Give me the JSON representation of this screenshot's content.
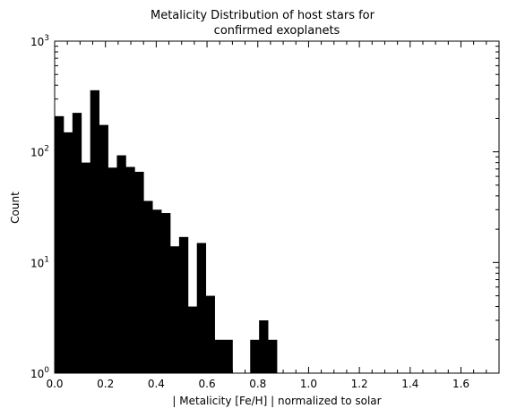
{
  "chart_data": {
    "type": "bar",
    "title_lines": [
      "Metalicity Distribution of host stars for",
      "confirmed exoplanets"
    ],
    "xlabel": "| Metalicity [Fe/H] | normalized to solar",
    "ylabel": "Count",
    "xlim": [
      0.0,
      1.75
    ],
    "ylim": [
      1,
      1000
    ],
    "yscale": "log",
    "bin_width": 0.035,
    "bin_starts": [
      0.0,
      0.035,
      0.07,
      0.105,
      0.14,
      0.175,
      0.21,
      0.245,
      0.28,
      0.315,
      0.35,
      0.385,
      0.42,
      0.455,
      0.49,
      0.525,
      0.56,
      0.595,
      0.63,
      0.665,
      0.7,
      0.735,
      0.77,
      0.805,
      0.84
    ],
    "values": [
      210,
      150,
      225,
      80,
      360,
      175,
      72,
      93,
      73,
      66,
      36,
      30,
      28,
      14,
      17,
      4,
      15,
      5,
      2,
      2,
      1,
      1,
      2,
      3,
      2
    ],
    "x_ticks": [
      "0.0",
      "0.2",
      "0.4",
      "0.6",
      "0.8",
      "1.0",
      "1.2",
      "1.4",
      "1.6"
    ],
    "y_ticks": [
      {
        "base": "10",
        "exp": "0"
      },
      {
        "base": "10",
        "exp": "1"
      },
      {
        "base": "10",
        "exp": "2"
      },
      {
        "base": "10",
        "exp": "3"
      }
    ],
    "grid": false,
    "bar_color": "#000000"
  }
}
